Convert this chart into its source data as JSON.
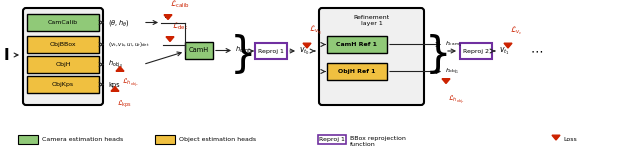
{
  "bg_color": "#ffffff",
  "green_color": "#90c978",
  "yellow_color": "#f0c040",
  "purple_border": "#7030a0",
  "orange_red": "#cc2200",
  "arrow_color": "#222222",
  "black": "#000000",
  "gray_bg": "#f0f0f0",
  "legend": {
    "green_label": "Camera estimation heads",
    "yellow_label": "Object estimation heads",
    "reproj_label": "BBox reprojection\nfunction",
    "loss_label": "Loss"
  }
}
